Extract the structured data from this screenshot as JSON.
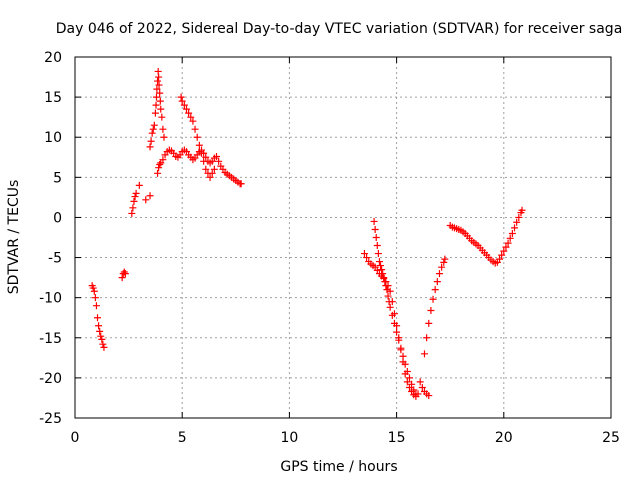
{
  "chart_data": {
    "type": "scatter",
    "title": "Day 046 of 2022, Sidereal Day-to-day VTEC variation (SDTVAR) for receiver saga",
    "xlabel": "GPS time / hours",
    "ylabel": "SDTVAR / TECUs",
    "xlim": [
      0,
      25
    ],
    "ylim": [
      -25,
      20
    ],
    "xticks": [
      "0",
      "5",
      "10",
      "15",
      "20",
      "25"
    ],
    "yticks": [
      "20",
      "15",
      "10",
      "5",
      "0",
      "-5",
      "-10",
      "-15",
      "-20",
      "-25"
    ],
    "grid": true,
    "marker": "+",
    "color": "#ff0000",
    "series": [
      {
        "name": "SDTVAR",
        "x": [
          0.8,
          0.85,
          0.9,
          0.95,
          1.0,
          1.05,
          1.1,
          1.15,
          1.2,
          1.25,
          1.3,
          1.35,
          2.2,
          2.25,
          2.3,
          2.35,
          2.65,
          2.7,
          2.75,
          2.8,
          2.85,
          3.0,
          3.3,
          3.5,
          3.5,
          3.55,
          3.6,
          3.65,
          3.7,
          3.75,
          3.78,
          3.8,
          3.82,
          3.85,
          3.88,
          3.9,
          3.92,
          3.95,
          3.98,
          4.0,
          4.05,
          4.1,
          4.15,
          3.85,
          3.9,
          3.95,
          4.0,
          4.1,
          4.2,
          4.3,
          4.4,
          4.5,
          4.6,
          4.7,
          4.8,
          4.9,
          5.0,
          5.1,
          5.2,
          5.3,
          5.4,
          5.5,
          5.6,
          5.7,
          5.8,
          5.9,
          6.0,
          6.1,
          6.2,
          6.3,
          6.4,
          6.5,
          6.6,
          6.7,
          6.8,
          6.9,
          7.0,
          7.1,
          7.2,
          7.3,
          7.4,
          7.5,
          7.6,
          7.7,
          7.75,
          4.95,
          5.0,
          5.1,
          5.2,
          5.3,
          5.4,
          5.5,
          5.6,
          5.7,
          5.8,
          5.9,
          6.0,
          6.1,
          6.2,
          6.3,
          6.4,
          6.5,
          13.5,
          13.6,
          13.7,
          13.8,
          13.9,
          14.0,
          14.1,
          14.2,
          14.3,
          14.4,
          14.5,
          14.6,
          14.7,
          14.8,
          14.9,
          15.0,
          15.1,
          15.2,
          15.3,
          15.4,
          15.5,
          15.6,
          15.7,
          15.8,
          15.9,
          16.0,
          13.95,
          14.0,
          14.05,
          14.1,
          14.15,
          14.2,
          14.25,
          14.3,
          14.35,
          14.4,
          14.45,
          14.5,
          14.55,
          14.6,
          14.65,
          14.7,
          14.8,
          14.9,
          15.0,
          15.1,
          15.2,
          15.3,
          15.4,
          15.5,
          15.6,
          15.7,
          15.8,
          15.9,
          16.1,
          16.2,
          16.3,
          16.4,
          16.5,
          16.3,
          16.4,
          16.5,
          16.6,
          16.7,
          16.8,
          16.9,
          17.0,
          17.1,
          17.2,
          17.25,
          17.5,
          17.6,
          17.7,
          17.8,
          17.9,
          18.0,
          18.1,
          18.2,
          18.3,
          18.4,
          18.5,
          18.6,
          18.7,
          18.8,
          18.9,
          19.0,
          19.1,
          19.2,
          19.3,
          19.4,
          19.5,
          19.6,
          19.7,
          19.8,
          19.9,
          20.0,
          20.1,
          20.2,
          20.3,
          20.4,
          20.5,
          20.6,
          20.7,
          20.8,
          20.85
        ],
        "y": [
          -8.5,
          -8.8,
          -9.2,
          -10.0,
          -11.0,
          -12.5,
          -13.5,
          -14.2,
          -14.8,
          -15.2,
          -15.8,
          -16.2,
          -7.5,
          -7.0,
          -6.8,
          -7.0,
          0.5,
          1.2,
          2.0,
          2.6,
          3.0,
          4.0,
          2.2,
          2.7,
          8.8,
          9.5,
          10.5,
          11.0,
          11.5,
          13.0,
          14.0,
          15.0,
          16.0,
          17.0,
          18.2,
          17.5,
          16.5,
          15.5,
          14.5,
          13.5,
          12.5,
          11.0,
          10.0,
          5.5,
          6.2,
          6.6,
          6.8,
          7.2,
          7.8,
          8.2,
          8.4,
          8.3,
          8.0,
          7.6,
          7.5,
          7.8,
          8.2,
          8.4,
          8.2,
          7.8,
          7.5,
          7.2,
          7.4,
          7.8,
          8.2,
          8.4,
          8.0,
          7.5,
          7.0,
          6.8,
          7.0,
          7.4,
          7.6,
          7.0,
          6.4,
          6.0,
          5.6,
          5.4,
          5.2,
          5.0,
          4.8,
          4.6,
          4.4,
          4.2,
          4.2,
          15.0,
          14.5,
          14.0,
          13.5,
          13.0,
          12.5,
          12.0,
          11.0,
          10.0,
          9.0,
          8.0,
          7.0,
          6.0,
          5.5,
          5.0,
          5.5,
          6.0,
          -4.5,
          -5.0,
          -5.5,
          -5.8,
          -6.0,
          -6.2,
          -6.6,
          -7.0,
          -7.3,
          -7.6,
          -8.0,
          -8.5,
          -9.2,
          -10.5,
          -12.0,
          -13.5,
          -15.0,
          -16.5,
          -18.0,
          -19.5,
          -20.5,
          -21.2,
          -21.7,
          -22.1,
          -22.3,
          -22.0,
          -0.5,
          -1.5,
          -2.5,
          -3.5,
          -4.5,
          -5.5,
          -6.0,
          -6.5,
          -7.0,
          -7.5,
          -8.0,
          -8.5,
          -9.0,
          -9.8,
          -10.5,
          -11.2,
          -12.2,
          -13.2,
          -14.3,
          -15.3,
          -16.3,
          -17.3,
          -18.3,
          -19.2,
          -20.0,
          -20.8,
          -21.5,
          -22.0,
          -20.5,
          -21.2,
          -21.7,
          -22.0,
          -22.2,
          -17.0,
          -15.0,
          -13.2,
          -11.6,
          -10.2,
          -9.0,
          -8.0,
          -7.0,
          -6.2,
          -5.6,
          -5.2,
          -1.0,
          -1.2,
          -1.3,
          -1.4,
          -1.5,
          -1.6,
          -1.8,
          -2.0,
          -2.3,
          -2.6,
          -2.9,
          -3.1,
          -3.3,
          -3.5,
          -3.8,
          -4.1,
          -4.4,
          -4.7,
          -5.0,
          -5.3,
          -5.5,
          -5.7,
          -5.6,
          -5.2,
          -4.7,
          -4.2,
          -3.7,
          -3.2,
          -2.6,
          -2.0,
          -1.3,
          -0.6,
          0.0,
          0.6,
          0.9
        ]
      }
    ]
  }
}
